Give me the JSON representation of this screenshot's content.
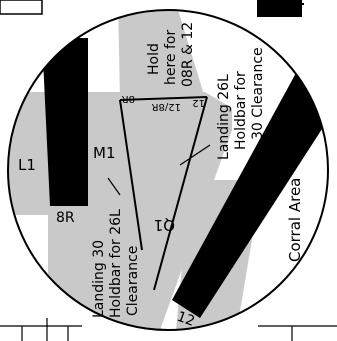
{
  "diagram": {
    "colors": {
      "taxiway": "#c9c9c9",
      "runway": "#000000",
      "line": "#000000",
      "background": "#ffffff"
    },
    "labels": {
      "l1": "L1",
      "m1": "M1",
      "q1": "Q1",
      "runway_8r": "8R",
      "runway_12": "12",
      "hold_line1": "Hold",
      "hold_line2": "here for",
      "hold_line3": "08R & 12",
      "marker_8r": "8R",
      "marker_12_8r": "12/8R",
      "marker_12": "12",
      "landing26_line1": "Landing 26L",
      "landing26_line2": "Holdbar for",
      "landing26_line3": "30 Clearance",
      "landing30_line1": "Landing 30",
      "landing30_line2": "Holdbar for 26L",
      "landing30_line3": "Clearance",
      "corral_area": "Corral Area"
    }
  }
}
